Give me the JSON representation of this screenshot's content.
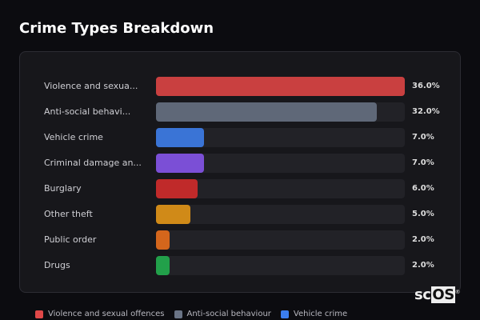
{
  "title": "Crime Types Breakdown",
  "chart_data": {
    "type": "bar",
    "orientation": "horizontal",
    "categories": [
      "Violence and sexua...",
      "Anti-social behavi...",
      "Vehicle crime",
      "Criminal damage an...",
      "Burglary",
      "Other theft",
      "Public order",
      "Drugs"
    ],
    "values": [
      36.0,
      32.0,
      7.0,
      7.0,
      6.0,
      5.0,
      2.0,
      2.0
    ],
    "value_labels": [
      "36.0%",
      "32.0%",
      "7.0%",
      "7.0%",
      "6.0%",
      "5.0%",
      "2.0%",
      "2.0%"
    ],
    "colors": [
      "#c94040",
      "#5f6878",
      "#3a74d6",
      "#7b4fd6",
      "#c02a2a",
      "#d08a18",
      "#d4661c",
      "#22a04a"
    ],
    "xlim": [
      0,
      36
    ]
  },
  "legend": [
    {
      "label": "Violence and sexual offences",
      "color": "#e04848"
    },
    {
      "label": "Anti-social behaviour",
      "color": "#6a7486"
    },
    {
      "label": "Vehicle crime",
      "color": "#3b7ef0"
    }
  ],
  "logo": {
    "text_a": "sc",
    "text_b": "OS",
    "mark": "®"
  }
}
